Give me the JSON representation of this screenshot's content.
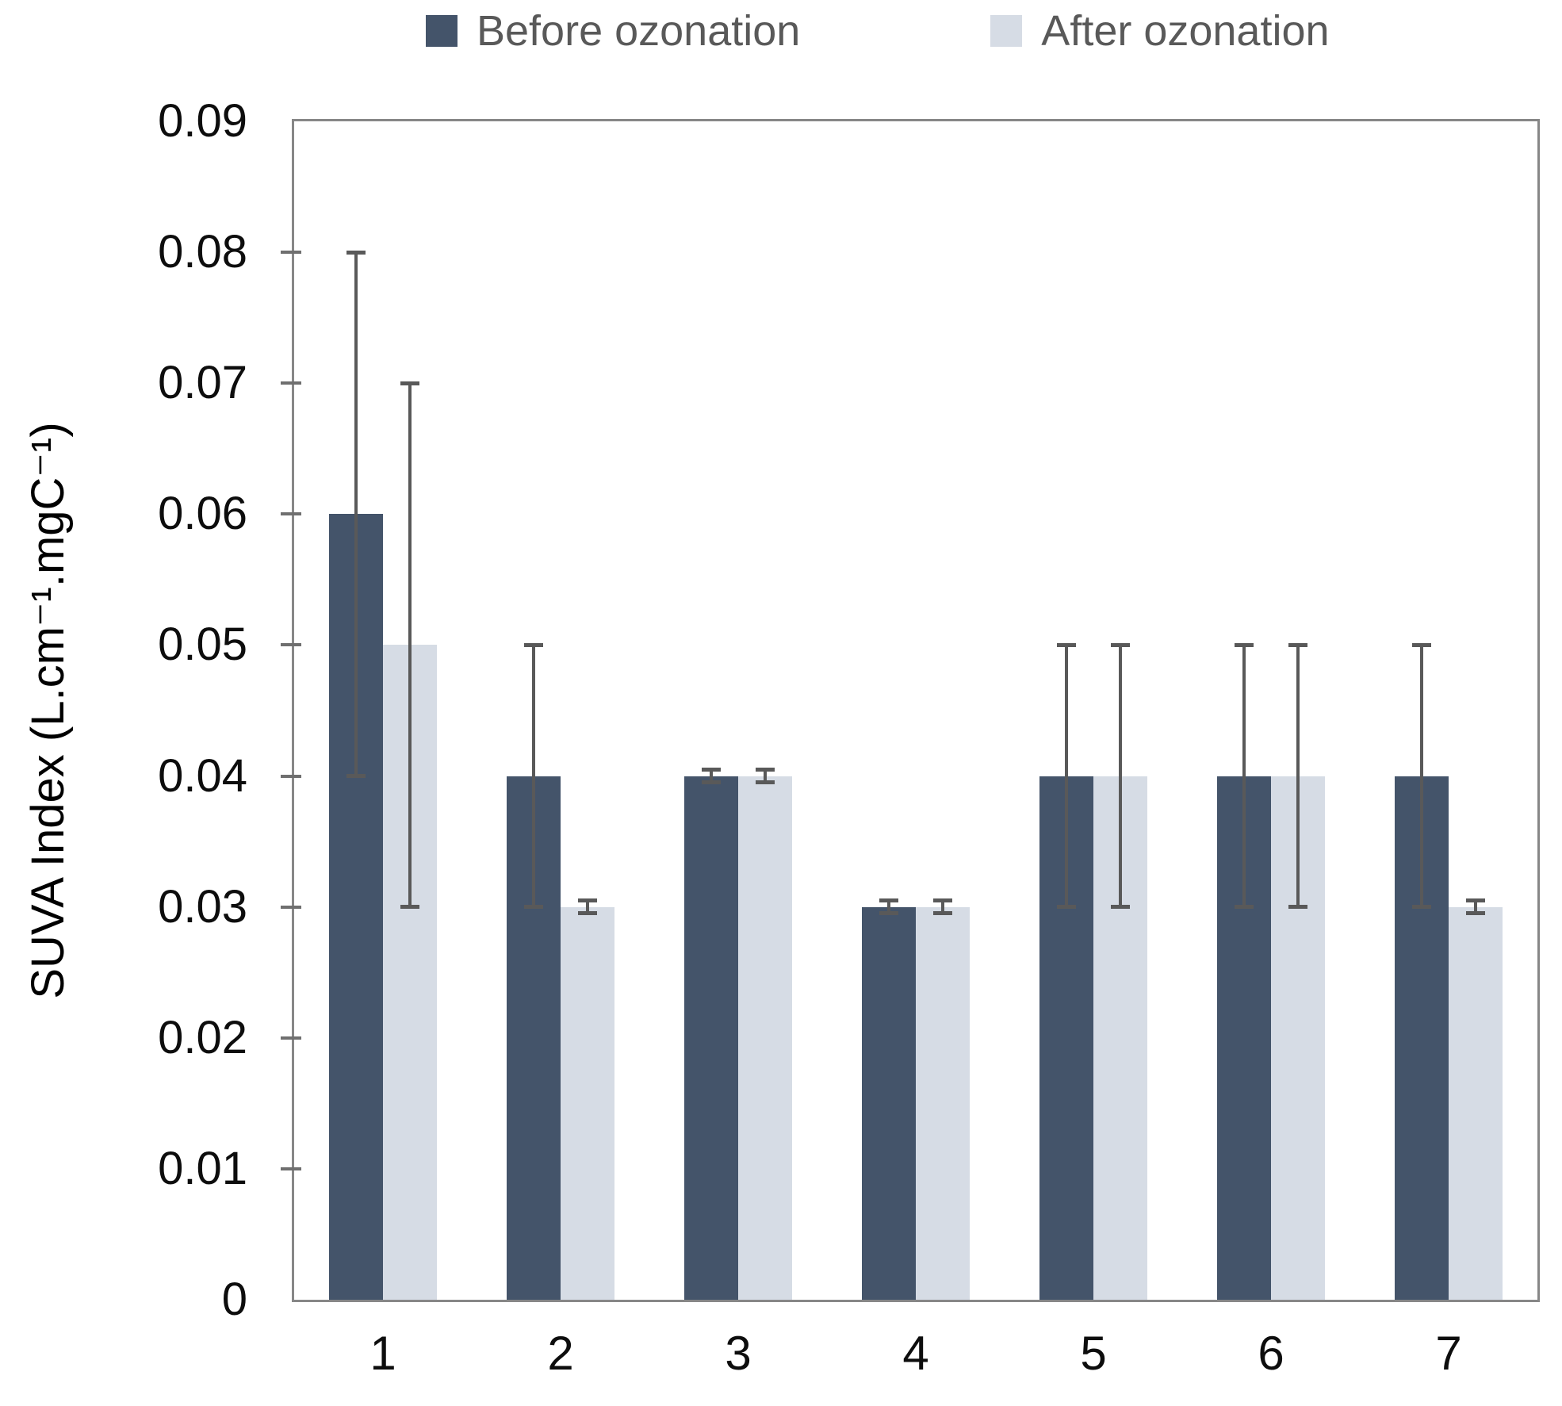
{
  "chart_data": {
    "type": "bar",
    "title": "",
    "categories": [
      "1",
      "2",
      "3",
      "4",
      "5",
      "6",
      "7"
    ],
    "series": [
      {
        "name": "Before ozonation",
        "color": "#44546A",
        "values": [
          0.06,
          0.04,
          0.04,
          0.03,
          0.04,
          0.04,
          0.04
        ],
        "errors": [
          0.02,
          0.01,
          0.0005,
          0.0005,
          0.01,
          0.01,
          0.01
        ]
      },
      {
        "name": "After ozonation",
        "color": "#D6DCE5",
        "values": [
          0.05,
          0.03,
          0.04,
          0.03,
          0.04,
          0.04,
          0.03
        ],
        "errors": [
          0.02,
          0.0005,
          0.0005,
          0.0005,
          0.01,
          0.01,
          0.0005
        ]
      }
    ],
    "ylabel": "SUVA Index (L.cm⁻¹.mgC⁻¹)",
    "xlabel": "",
    "ylim": [
      0,
      0.09
    ],
    "yticks": [
      0,
      0.01,
      0.02,
      0.03,
      0.04,
      0.05,
      0.06,
      0.07,
      0.08,
      0.09
    ],
    "ytick_labels": [
      "0",
      "0.01",
      "0.02",
      "0.03",
      "0.04",
      "0.05",
      "0.06",
      "0.07",
      "0.08",
      "0.09"
    ],
    "grid": false,
    "legend_position": "top",
    "error_bar_color": "#595959",
    "axis_color": "#878787"
  }
}
